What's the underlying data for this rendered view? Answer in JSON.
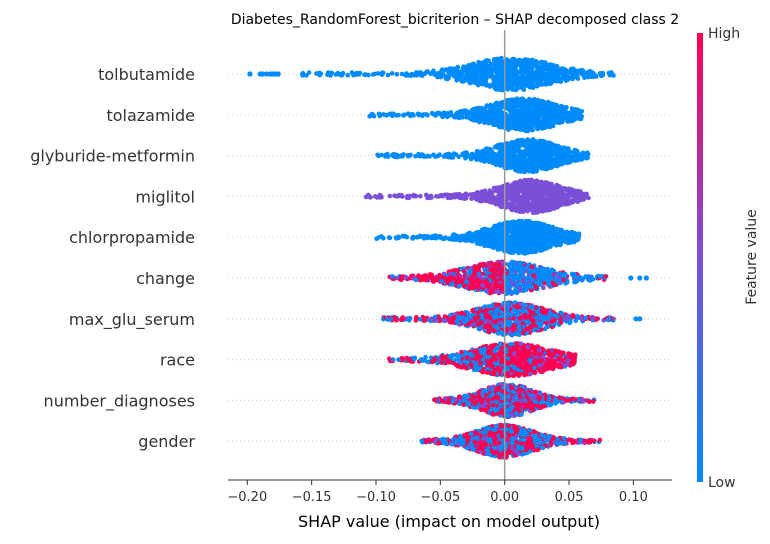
{
  "chart_data": {
    "type": "scatter",
    "title": "Diabetes_RandomForest_bicriterion – SHAP decomposed class 2",
    "xlabel": "SHAP value (impact on model output)",
    "xlim": [
      -0.215,
      0.13
    ],
    "xticks": [
      "−0.20",
      "−0.15",
      "−0.10",
      "−0.05",
      "0.00",
      "0.05",
      "0.10"
    ],
    "xtick_values": [
      -0.2,
      -0.15,
      -0.1,
      -0.05,
      0.0,
      0.05,
      0.1
    ],
    "colorbar": {
      "label": "Feature value",
      "high": "High",
      "low": "Low",
      "low_color": "#008bfb",
      "mid_color": "#7b4fd8",
      "high_color": "#ff0052"
    },
    "features": [
      {
        "name": "tolbutamide",
        "min": -0.198,
        "max": 0.118,
        "q1": -0.01,
        "median": 0.005,
        "q3": 0.025,
        "core_min": -0.16,
        "core_max": 0.085,
        "color_mode": "low",
        "outliers_left": [
          -0.198,
          -0.19,
          -0.188,
          -0.185,
          -0.182,
          -0.18,
          -0.178,
          -0.176
        ]
      },
      {
        "name": "tolazamide",
        "min": -0.11,
        "max": 0.063,
        "q1": 0.0,
        "median": 0.015,
        "q3": 0.03,
        "core_min": -0.105,
        "core_max": 0.06,
        "color_mode": "low"
      },
      {
        "name": "glyburide-metformin",
        "min": -0.108,
        "max": 0.07,
        "q1": 0.005,
        "median": 0.018,
        "q3": 0.032,
        "core_min": -0.1,
        "core_max": 0.065,
        "color_mode": "low"
      },
      {
        "name": "miglitol",
        "min": -0.108,
        "max": 0.066,
        "q1": 0.008,
        "median": 0.02,
        "q3": 0.035,
        "core_min": -0.108,
        "core_max": 0.066,
        "color_mode": "mid"
      },
      {
        "name": "chlorpropamide",
        "min": -0.103,
        "max": 0.06,
        "q1": 0.0,
        "median": 0.013,
        "q3": 0.028,
        "core_min": -0.1,
        "core_max": 0.058,
        "color_mode": "low"
      },
      {
        "name": "change",
        "min": -0.095,
        "max": 0.11,
        "q1": -0.015,
        "median": 0.0,
        "q3": 0.02,
        "core_min": -0.09,
        "core_max": 0.08,
        "color_mode": "mixed_high_left",
        "outliers_right": [
          0.098,
          0.105,
          0.11
        ]
      },
      {
        "name": "max_glu_serum",
        "min": -0.098,
        "max": 0.105,
        "q1": -0.01,
        "median": 0.005,
        "q3": 0.02,
        "core_min": -0.095,
        "core_max": 0.085,
        "color_mode": "mixed",
        "outliers_right": [
          0.102,
          0.105
        ]
      },
      {
        "name": "race",
        "min": -0.092,
        "max": 0.067,
        "q1": -0.01,
        "median": 0.005,
        "q3": 0.025,
        "core_min": -0.09,
        "core_max": 0.055,
        "color_mode": "mixed_high_right"
      },
      {
        "name": "number_diagnoses",
        "min": -0.055,
        "max": 0.072,
        "q1": -0.008,
        "median": 0.002,
        "q3": 0.015,
        "core_min": -0.055,
        "core_max": 0.07,
        "color_mode": "mixed"
      },
      {
        "name": "gender",
        "min": -0.065,
        "max": 0.075,
        "q1": -0.01,
        "median": 0.0,
        "q3": 0.015,
        "core_min": -0.065,
        "core_max": 0.075,
        "color_mode": "mixed"
      }
    ]
  }
}
